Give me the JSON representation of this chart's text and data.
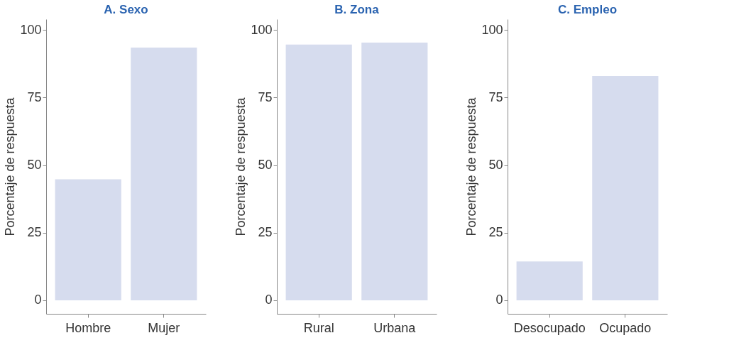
{
  "chart_data": [
    {
      "type": "bar",
      "title": "A. Sexo",
      "ylabel": "Porcentaje de respuesta",
      "categories": [
        "Hombre",
        "Mujer"
      ],
      "values": [
        44.8,
        93.5
      ],
      "color": "#d6dcee",
      "ylim": [
        -5,
        104
      ],
      "yticks": [
        0,
        25,
        50,
        75,
        100
      ],
      "grid": false
    },
    {
      "type": "bar",
      "title": "B. Zona",
      "ylabel": "Porcentaje de respuesta",
      "categories": [
        "Rural",
        "Urbana"
      ],
      "values": [
        94.6,
        95.3
      ],
      "color": "#d6dcee",
      "ylim": [
        -5,
        104
      ],
      "yticks": [
        0,
        25,
        50,
        75,
        100
      ],
      "grid": false
    },
    {
      "type": "bar",
      "title": "C. Empleo",
      "ylabel": "Porcentaje de respuesta",
      "categories": [
        "Desocupado",
        "Ocupado"
      ],
      "values": [
        14.4,
        83.0
      ],
      "color": "#d6dcee",
      "ylim": [
        -5,
        104
      ],
      "yticks": [
        0,
        25,
        50,
        75,
        100
      ],
      "grid": false
    }
  ]
}
